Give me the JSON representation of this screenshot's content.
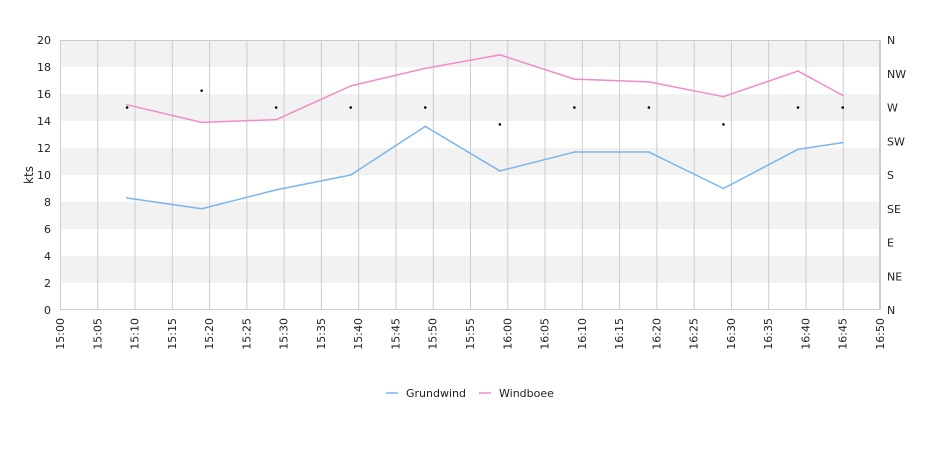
{
  "chart_data": {
    "type": "line",
    "ylabel": "kts",
    "ylim": [
      0,
      20
    ],
    "y_ticks": [
      "0",
      "2",
      "4",
      "6",
      "8",
      "10",
      "12",
      "14",
      "16",
      "18",
      "20"
    ],
    "x_ticks": [
      "15:00",
      "15:05",
      "15:10",
      "15:15",
      "15:20",
      "15:25",
      "15:30",
      "15:35",
      "15:40",
      "15:45",
      "15:50",
      "15:55",
      "16:00",
      "16:05",
      "16:10",
      "16:15",
      "16:20",
      "16:25",
      "16:30",
      "16:35",
      "16:40",
      "16:45",
      "16:50"
    ],
    "xlim": [
      "15:00",
      "16:50"
    ],
    "direction_axis": {
      "ticks": [
        "N",
        "NE",
        "E",
        "SE",
        "S",
        "SW",
        "W",
        "NW",
        "N"
      ],
      "ylim_degrees": [
        0,
        360
      ]
    },
    "x": [
      "15:09",
      "15:19",
      "15:29",
      "15:39",
      "15:49",
      "15:59",
      "16:09",
      "16:19",
      "16:29",
      "16:39",
      "16:45"
    ],
    "series": [
      {
        "name": "Grundwind",
        "color": "#7cb5ec",
        "values": [
          8.3,
          7.5,
          8.9,
          10.0,
          13.6,
          10.3,
          11.7,
          11.7,
          9.0,
          11.9,
          12.4
        ]
      },
      {
        "name": "Windboee",
        "color": "#f08dc5",
        "values": [
          15.2,
          13.9,
          14.1,
          16.6,
          17.9,
          18.9,
          17.1,
          16.9,
          15.8,
          17.7,
          15.9
        ]
      }
    ],
    "direction": {
      "color": "#000000",
      "x": [
        "15:09",
        "15:19",
        "15:29",
        "15:39",
        "15:49",
        "15:59",
        "16:09",
        "16:19",
        "16:29",
        "16:39",
        "16:45"
      ],
      "degrees": [
        270,
        292.5,
        270,
        270,
        270,
        247.5,
        270,
        270,
        247.5,
        270,
        270
      ]
    },
    "grid": true,
    "legend": "bottom-center"
  }
}
